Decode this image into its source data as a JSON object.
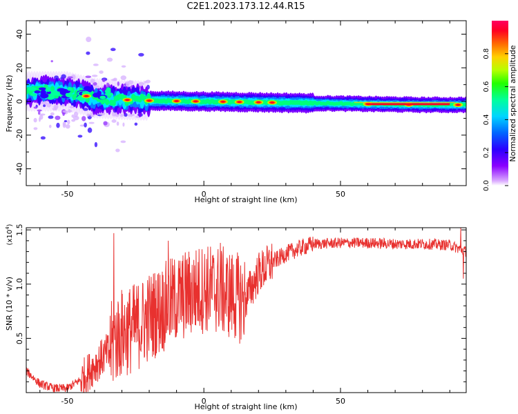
{
  "figure": {
    "title": "C2E1.2023.173.12.44.R15"
  },
  "chart_data": [
    {
      "type": "heatmap",
      "title": "C2E1.2023.173.12.44.R15",
      "xlabel": "Height of straight line (km)",
      "ylabel": "Frequency (Hz)",
      "xlim": [
        -65,
        96
      ],
      "ylim": [
        -50,
        48
      ],
      "xticks": [
        -50,
        0,
        50
      ],
      "yticks": [
        -40,
        -20,
        0,
        20,
        40
      ],
      "tick_labels_x": [
        "-50",
        "0",
        "50"
      ],
      "tick_labels_y": [
        "-40",
        "-20",
        "0",
        "20",
        "40"
      ],
      "ridge": [
        {
          "x": -65,
          "y": 6
        },
        {
          "x": -58,
          "y": 6
        },
        {
          "x": -50,
          "y": 6
        },
        {
          "x": -45,
          "y": 4
        },
        {
          "x": -40,
          "y": 2
        },
        {
          "x": -30,
          "y": 1
        },
        {
          "x": -20,
          "y": 0.5
        },
        {
          "x": 0,
          "y": 0
        },
        {
          "x": 20,
          "y": -0.5
        },
        {
          "x": 40,
          "y": -1
        },
        {
          "x": 60,
          "y": -1.5
        },
        {
          "x": 80,
          "y": -2
        },
        {
          "x": 96,
          "y": -2
        }
      ],
      "hotspots_x": [
        -43,
        -28,
        -20,
        -10,
        -3,
        7,
        13,
        20,
        25,
        60,
        75,
        93
      ],
      "colorbar": {
        "label": "Normalized spectral amplitude",
        "range": [
          0,
          1
        ],
        "ticks": [
          0.0,
          0.2,
          0.4,
          0.6,
          0.8
        ],
        "tick_labels": [
          "0.0",
          "0.2",
          "0.4",
          "0.6",
          "0.8"
        ]
      }
    },
    {
      "type": "line",
      "xlabel": "Height of straight line (km)",
      "ylabel": "SNR (10 * v/v)",
      "yscale_label": "(x10",
      "yscale_exp": "4",
      "xlim": [
        -65,
        96
      ],
      "ylim": [
        0,
        1.52
      ],
      "xticks": [
        -50,
        0,
        50
      ],
      "yticks": [
        0.5,
        1.0,
        1.5
      ],
      "tick_labels_x": [
        "-50",
        "0",
        "50"
      ],
      "tick_labels_y": [
        "0.5",
        "1.0",
        "1.5"
      ],
      "color": "#e8312f",
      "series": [
        {
          "name": "SNR",
          "x": [
            -65,
            -60,
            -55,
            -50,
            -45,
            -40,
            -35,
            -32,
            -30,
            -25,
            -20,
            -15,
            -10,
            -5,
            0,
            5,
            10,
            15,
            20,
            25,
            30,
            35,
            40,
            50,
            60,
            70,
            80,
            90,
            96
          ],
          "y": [
            0.2,
            0.08,
            0.04,
            0.04,
            0.12,
            0.25,
            0.38,
            0.5,
            0.55,
            0.6,
            0.7,
            0.78,
            0.86,
            0.92,
            0.96,
            0.95,
            0.9,
            0.85,
            1.1,
            1.2,
            1.28,
            1.33,
            1.37,
            1.38,
            1.38,
            1.37,
            1.37,
            1.36,
            1.3
          ],
          "spikes": [
            {
              "x": -33,
              "y": 1.47
            },
            {
              "x": -13,
              "y": 1.4
            },
            {
              "x": 6,
              "y": 1.38
            },
            {
              "x": 94,
              "y": 1.52
            },
            {
              "x": 95,
              "y": 1.05
            }
          ]
        }
      ]
    }
  ]
}
